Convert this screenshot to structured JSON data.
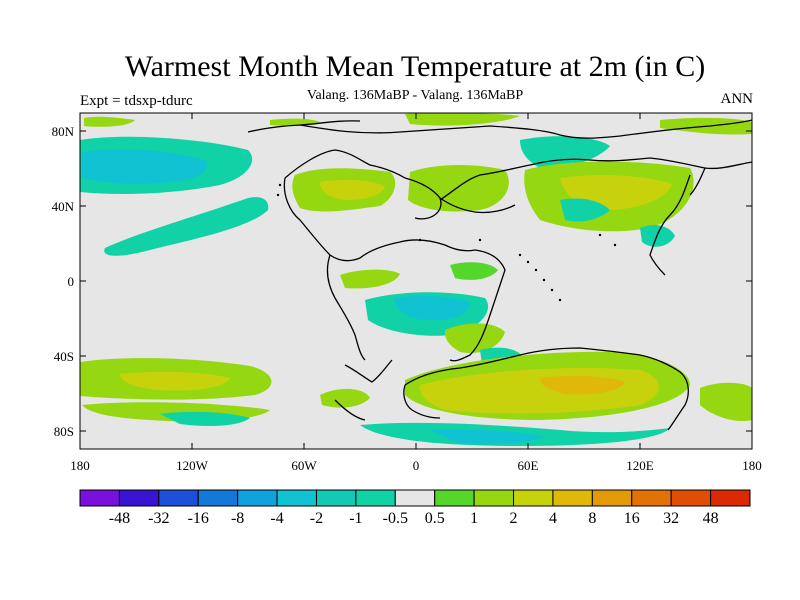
{
  "title": "Warmest Month Mean Temperature at 2m (in C)",
  "subtitle": "Valang. 136MaBP - Valang.  136MaBP",
  "left_label": "Expt = tdsxp-tdurc",
  "right_label": "ANN",
  "lat_labels": [
    "80N",
    "40N",
    "0",
    "40S",
    "80S"
  ],
  "lon_labels": [
    "180",
    "120W",
    "60W",
    "0",
    "60E",
    "120E",
    "180"
  ],
  "colorbar": {
    "colors": [
      "#7a10dc",
      "#3a14d0",
      "#1e4fd8",
      "#1478d8",
      "#0fa2dc",
      "#11c2d2",
      "#12c9b8",
      "#10d2a6",
      "#e6e6e6",
      "#55d62a",
      "#95d812",
      "#c8d20c",
      "#e0b80a",
      "#e29a08",
      "#e07206",
      "#e04e06",
      "#d92a04"
    ],
    "labels": [
      "-48",
      "-32",
      "-16",
      "-8",
      "-4",
      "-2",
      "-1",
      "-0.5",
      "0.5",
      "1",
      "2",
      "4",
      "8",
      "16",
      "32",
      "48"
    ]
  }
}
